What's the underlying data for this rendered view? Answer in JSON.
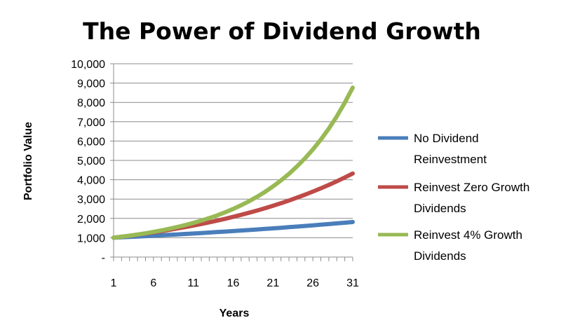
{
  "chart_data": {
    "type": "line",
    "title": "The Power of Dividend Growth",
    "xlabel": "Years",
    "ylabel": "Portfolio Value",
    "x": [
      1,
      2,
      3,
      4,
      5,
      6,
      7,
      8,
      9,
      10,
      11,
      12,
      13,
      14,
      15,
      16,
      17,
      18,
      19,
      20,
      21,
      22,
      23,
      24,
      25,
      26,
      27,
      28,
      29,
      30,
      31
    ],
    "xticks": [
      1,
      6,
      11,
      16,
      21,
      26,
      31
    ],
    "xlim": [
      1,
      31
    ],
    "ylim": [
      0,
      10000
    ],
    "yticks": [
      0,
      1000,
      2000,
      3000,
      4000,
      5000,
      6000,
      7000,
      8000,
      9000,
      10000
    ],
    "ytick_labels": [
      "-",
      "1,000",
      "2,000",
      "3,000",
      "4,000",
      "5,000",
      "6,000",
      "7,000",
      "8,000",
      "9,000",
      "10,000"
    ],
    "grid": "horizontal",
    "legend": "right",
    "series": [
      {
        "name": "No Dividend Reinvestment",
        "legend_lines": [
          "No Dividend",
          "Reinvestment"
        ],
        "color": "#4a7ebb",
        "values": [
          1000,
          1020,
          1040,
          1061,
          1082,
          1104,
          1126,
          1149,
          1172,
          1195,
          1219,
          1243,
          1268,
          1294,
          1319,
          1346,
          1373,
          1400,
          1428,
          1457,
          1486,
          1516,
          1546,
          1577,
          1608,
          1641,
          1673,
          1707,
          1741,
          1776,
          1811
        ]
      },
      {
        "name": "Reinvest Zero Growth Dividends",
        "legend_lines": [
          "Reinvest Zero Growth",
          "Dividends"
        ],
        "color": "#be4b48",
        "values": [
          1000,
          1050,
          1103,
          1158,
          1216,
          1276,
          1340,
          1407,
          1477,
          1551,
          1629,
          1710,
          1796,
          1886,
          1980,
          2079,
          2183,
          2292,
          2407,
          2527,
          2653,
          2786,
          2925,
          3072,
          3225,
          3386,
          3556,
          3733,
          3920,
          4116,
          4322
        ]
      },
      {
        "name": "Reinvest 4% Growth Dividends",
        "legend_lines": [
          "Reinvest 4% Growth",
          "Dividends"
        ],
        "color": "#98b954",
        "values": [
          1000,
          1050,
          1105,
          1165,
          1230,
          1301,
          1378,
          1462,
          1554,
          1654,
          1763,
          1883,
          2014,
          2158,
          2316,
          2489,
          2680,
          2889,
          3120,
          3374,
          3654,
          3963,
          4305,
          4683,
          5101,
          5564,
          6077,
          6646,
          7278,
          7981,
          8763
        ]
      }
    ]
  }
}
